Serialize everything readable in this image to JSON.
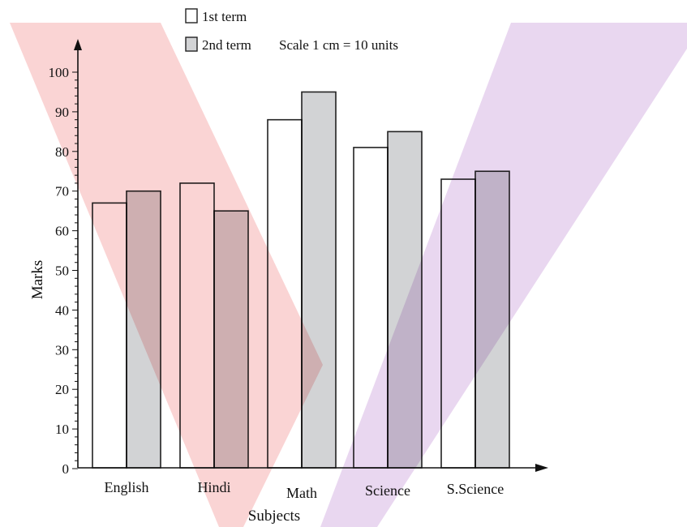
{
  "chart_data": {
    "type": "bar",
    "title": "",
    "xlabel": "Subjects",
    "ylabel": "Marks",
    "scale_note": "Scale 1 cm = 10 units",
    "categories": [
      "English",
      "Hindi",
      "Math",
      "Science",
      "S.Science"
    ],
    "series": [
      {
        "name": "1st term",
        "values": [
          67,
          72,
          88,
          81,
          73
        ],
        "color": "#ffffff"
      },
      {
        "name": "2nd term",
        "values": [
          70,
          65,
          95,
          85,
          75
        ],
        "color": "#d2d3d5"
      }
    ],
    "ylim": [
      0,
      100
    ],
    "yticks": [
      0,
      10,
      20,
      30,
      40,
      50,
      60,
      70,
      80,
      90,
      100
    ],
    "grid": false,
    "legend_position": "top",
    "overlay_colors": {
      "red": "#f07070",
      "purple": "#b070c8"
    }
  }
}
